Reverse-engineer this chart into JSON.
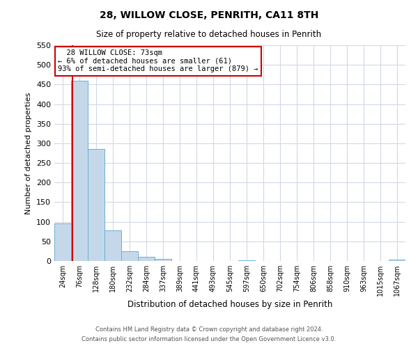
{
  "title1": "28, WILLOW CLOSE, PENRITH, CA11 8TH",
  "title2": "Size of property relative to detached houses in Penrith",
  "xlabel": "Distribution of detached houses by size in Penrith",
  "ylabel": "Number of detached properties",
  "bin_labels": [
    "24sqm",
    "76sqm",
    "128sqm",
    "180sqm",
    "232sqm",
    "284sqm",
    "337sqm",
    "389sqm",
    "441sqm",
    "493sqm",
    "545sqm",
    "597sqm",
    "650sqm",
    "702sqm",
    "754sqm",
    "806sqm",
    "858sqm",
    "910sqm",
    "963sqm",
    "1015sqm",
    "1067sqm"
  ],
  "bar_heights": [
    95,
    460,
    285,
    78,
    25,
    10,
    5,
    0,
    0,
    0,
    0,
    2,
    0,
    0,
    0,
    0,
    0,
    0,
    0,
    0,
    3
  ],
  "bar_color": "#c5d8ea",
  "bar_edge_color": "#6aafd4",
  "ylim": [
    0,
    550
  ],
  "yticks": [
    0,
    50,
    100,
    150,
    200,
    250,
    300,
    350,
    400,
    450,
    500,
    550
  ],
  "annotation_title": "28 WILLOW CLOSE: 73sqm",
  "annotation_line1": "← 6% of detached houses are smaller (61)",
  "annotation_line2": "93% of semi-detached houses are larger (879) →",
  "footer1": "Contains HM Land Registry data © Crown copyright and database right 2024.",
  "footer2": "Contains public sector information licensed under the Open Government Licence v3.0.",
  "bg_color": "#ffffff",
  "grid_color": "#d0d8e8",
  "annotation_box_color": "#ffffff",
  "annotation_box_edge": "#cc0000",
  "vline_color": "#cc0000",
  "vline_x_index": 0.575
}
